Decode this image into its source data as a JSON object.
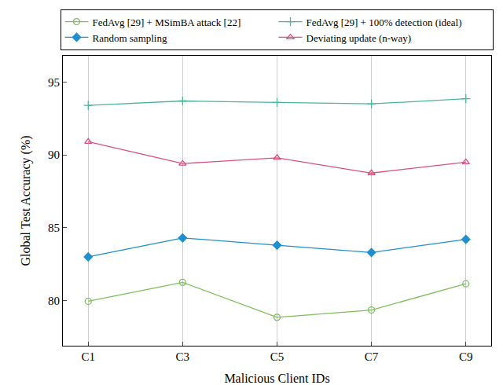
{
  "chart_data": {
    "type": "line",
    "x_label": "Malicious Client IDs",
    "y_label": "Global Test Accuracy (%)",
    "categories": [
      "C1",
      "C3",
      "C5",
      "C7",
      "C9"
    ],
    "series": [
      {
        "name": "FedAvg [29] + MSimBA attack [22]",
        "color": "#7cbf5a",
        "marker": "circle-open",
        "values": [
          79.95,
          81.25,
          78.85,
          79.35,
          81.15
        ]
      },
      {
        "name": "FedAvg [29] + 100% detection (ideal)",
        "color": "#4bb59a",
        "marker": "plus",
        "values": [
          93.4,
          93.7,
          93.6,
          93.5,
          93.85
        ]
      },
      {
        "name": "Random sampling",
        "color": "#1f8fd0",
        "marker": "diamond",
        "values": [
          83.0,
          84.3,
          83.8,
          83.3,
          84.2
        ]
      },
      {
        "name": "Deviating update (n-way)",
        "color": "#d9507a",
        "marker": "triangle-open",
        "values": [
          90.9,
          89.4,
          89.8,
          88.75,
          89.5
        ]
      }
    ],
    "ylim": [
      76.9,
      96.8
    ],
    "yticks": [
      80,
      85,
      90,
      95
    ],
    "grid": "x",
    "legend": "top"
  }
}
